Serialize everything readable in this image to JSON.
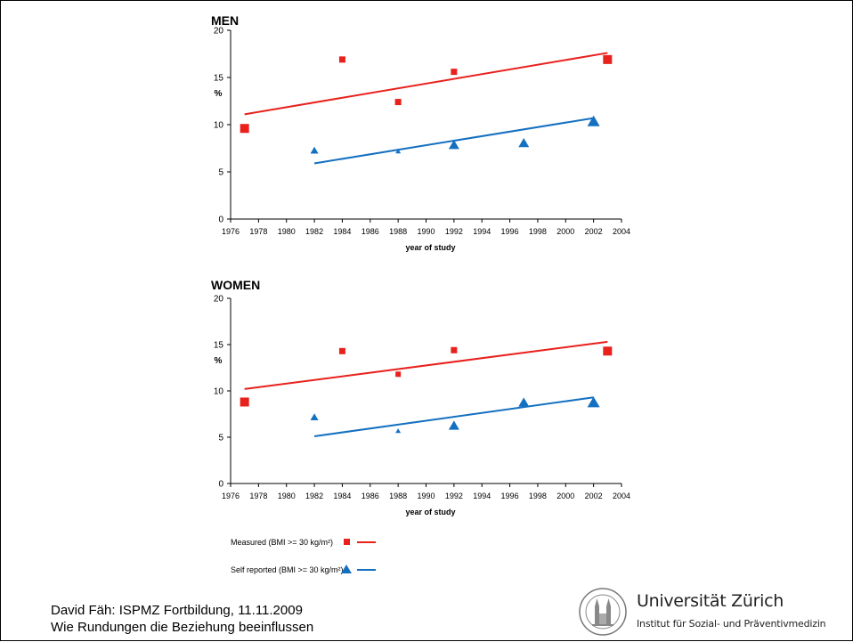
{
  "chart_data": [
    {
      "type": "scatter",
      "title": "MEN",
      "xlabel": "year of study",
      "ylabel": "%",
      "xlim": [
        1976,
        2004
      ],
      "ylim": [
        0,
        20
      ],
      "xticks": [
        "1976",
        "1978",
        "1980",
        "1982",
        "1984",
        "1986",
        "1988",
        "1990",
        "1992",
        "1994",
        "1996",
        "1998",
        "2000",
        "2002",
        "2004"
      ],
      "yticks": [
        "0",
        "5",
        "10",
        "15",
        "20"
      ],
      "series": [
        {
          "name": "Measured (BMI >= 30 kg/m²)",
          "marker": "square",
          "color": "#e8211c",
          "points": [
            {
              "x": 1977,
              "y": 9.6,
              "size": "large"
            },
            {
              "x": 1984,
              "y": 16.9,
              "size": "small"
            },
            {
              "x": 1988,
              "y": 12.4,
              "size": "small"
            },
            {
              "x": 1992,
              "y": 15.6,
              "size": "small"
            },
            {
              "x": 2003,
              "y": 16.9,
              "size": "large"
            }
          ],
          "trend": [
            [
              1977,
              11.1
            ],
            [
              2003,
              17.6
            ]
          ]
        },
        {
          "name": "Self reported (BMI >= 30 kg/m²)",
          "marker": "triangle",
          "color": "#1470c0",
          "points": [
            {
              "x": 1982,
              "y": 7.3,
              "size": "small"
            },
            {
              "x": 1988,
              "y": 7.2,
              "size": "tiny"
            },
            {
              "x": 1992,
              "y": 7.9,
              "size": "medium"
            },
            {
              "x": 1997,
              "y": 8.1,
              "size": "medium"
            },
            {
              "x": 2002,
              "y": 10.4,
              "size": "large"
            }
          ],
          "trend": [
            [
              1982,
              5.9
            ],
            [
              2002,
              10.7
            ]
          ]
        }
      ]
    },
    {
      "type": "scatter",
      "title": "WOMEN",
      "xlabel": "year of study",
      "ylabel": "%",
      "xlim": [
        1976,
        2004
      ],
      "ylim": [
        0,
        20
      ],
      "xticks": [
        "1976",
        "1978",
        "1980",
        "1982",
        "1984",
        "1986",
        "1988",
        "1990",
        "1992",
        "1994",
        "1996",
        "1998",
        "2000",
        "2002",
        "2004"
      ],
      "yticks": [
        "0",
        "5",
        "10",
        "15",
        "20"
      ],
      "series": [
        {
          "name": "Measured (BMI >= 30 kg/m²)",
          "marker": "square",
          "color": "#e8211c",
          "points": [
            {
              "x": 1977,
              "y": 8.8,
              "size": "large"
            },
            {
              "x": 1984,
              "y": 14.3,
              "size": "small"
            },
            {
              "x": 1988,
              "y": 11.8,
              "size": "tiny"
            },
            {
              "x": 1992,
              "y": 14.4,
              "size": "small"
            },
            {
              "x": 2003,
              "y": 14.3,
              "size": "large"
            }
          ],
          "trend": [
            [
              1977,
              10.2
            ],
            [
              2003,
              15.3
            ]
          ]
        },
        {
          "name": "Self reported (BMI >= 30 kg/m²)",
          "marker": "triangle",
          "color": "#1470c0",
          "points": [
            {
              "x": 1982,
              "y": 7.2,
              "size": "small"
            },
            {
              "x": 1988,
              "y": 5.7,
              "size": "tiny"
            },
            {
              "x": 1992,
              "y": 6.3,
              "size": "medium"
            },
            {
              "x": 1997,
              "y": 8.8,
              "size": "medium"
            },
            {
              "x": 2002,
              "y": 8.8,
              "size": "large"
            }
          ],
          "trend": [
            [
              1982,
              5.1
            ],
            [
              2002,
              9.3
            ]
          ]
        }
      ]
    }
  ],
  "legend": {
    "items": [
      {
        "label": "Measured (BMI >= 30 kg/m²)",
        "marker": "square",
        "color": "#e8211c"
      },
      {
        "label": "Self reported (BMI >= 30 kg/m²)",
        "marker": "triangle",
        "color": "#1470c0"
      }
    ]
  },
  "footer": {
    "line1": "David Fäh: ISPMZ Fortbildung, 11.11.2009",
    "line2": "Wie Rundungen die Beziehung beeinflussen"
  },
  "institution": {
    "name": "Universität Zürich",
    "department": "Institut für Sozial- und Präventivmedizin",
    "seal_icon": "university-seal-icon"
  }
}
